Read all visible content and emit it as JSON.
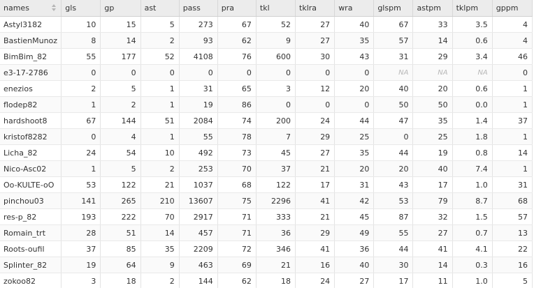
{
  "table": {
    "columns": [
      "names",
      "gls",
      "gp",
      "ast",
      "pass",
      "pra",
      "tkl",
      "tklra",
      "wra",
      "glspm",
      "astpm",
      "tklpm",
      "gppm"
    ],
    "rows": [
      [
        "Astyl3182",
        "10",
        "15",
        "5",
        "273",
        "67",
        "52",
        "27",
        "40",
        "67",
        "33",
        "3.5",
        "4"
      ],
      [
        "BastienMunoz",
        "8",
        "14",
        "2",
        "93",
        "62",
        "9",
        "27",
        "35",
        "57",
        "14",
        "0.6",
        "4"
      ],
      [
        "BimBim_82",
        "55",
        "177",
        "52",
        "4108",
        "76",
        "600",
        "30",
        "43",
        "31",
        "29",
        "3.4",
        "46"
      ],
      [
        "e3-17-2786",
        "0",
        "0",
        "0",
        "0",
        "0",
        "0",
        "0",
        "0",
        "NA",
        "NA",
        "NA",
        "0"
      ],
      [
        "enezios",
        "2",
        "5",
        "1",
        "31",
        "65",
        "3",
        "12",
        "20",
        "40",
        "20",
        "0.6",
        "1"
      ],
      [
        "flodep82",
        "1",
        "2",
        "1",
        "19",
        "86",
        "0",
        "0",
        "0",
        "50",
        "50",
        "0.0",
        "1"
      ],
      [
        "hardshoot8",
        "67",
        "144",
        "51",
        "2084",
        "74",
        "200",
        "24",
        "44",
        "47",
        "35",
        "1.4",
        "37"
      ],
      [
        "kristof8282",
        "0",
        "4",
        "1",
        "55",
        "78",
        "7",
        "29",
        "25",
        "0",
        "25",
        "1.8",
        "1"
      ],
      [
        "Licha_82",
        "24",
        "54",
        "10",
        "492",
        "73",
        "45",
        "27",
        "35",
        "44",
        "19",
        "0.8",
        "14"
      ],
      [
        "Nico-Asc02",
        "1",
        "5",
        "2",
        "253",
        "70",
        "37",
        "21",
        "20",
        "20",
        "40",
        "7.4",
        "1"
      ],
      [
        "Oo-KULTE-oO",
        "53",
        "122",
        "21",
        "1037",
        "68",
        "122",
        "17",
        "31",
        "43",
        "17",
        "1.0",
        "31"
      ],
      [
        "pinchou03",
        "141",
        "265",
        "210",
        "13607",
        "75",
        "2296",
        "41",
        "42",
        "53",
        "79",
        "8.7",
        "68"
      ],
      [
        "res-p_82",
        "193",
        "222",
        "70",
        "2917",
        "71",
        "333",
        "21",
        "45",
        "87",
        "32",
        "1.5",
        "57"
      ],
      [
        "Romain_trt",
        "28",
        "51",
        "14",
        "457",
        "71",
        "36",
        "29",
        "49",
        "55",
        "27",
        "0.7",
        "13"
      ],
      [
        "Roots-oufil",
        "37",
        "85",
        "35",
        "2209",
        "72",
        "346",
        "41",
        "36",
        "44",
        "41",
        "4.1",
        "22"
      ],
      [
        "Splinter_82",
        "19",
        "64",
        "9",
        "463",
        "69",
        "21",
        "16",
        "40",
        "30",
        "14",
        "0.3",
        "16"
      ],
      [
        "zokoo82",
        "3",
        "18",
        "2",
        "144",
        "62",
        "18",
        "24",
        "27",
        "17",
        "11",
        "1.0",
        "5"
      ]
    ]
  },
  "icons": {
    "sort": "sort-arrows-icon"
  },
  "colors": {
    "header_bg": "#ececec",
    "na_text": "#b8b8b8",
    "text": "#333333",
    "grid": "#e3e3e3"
  }
}
